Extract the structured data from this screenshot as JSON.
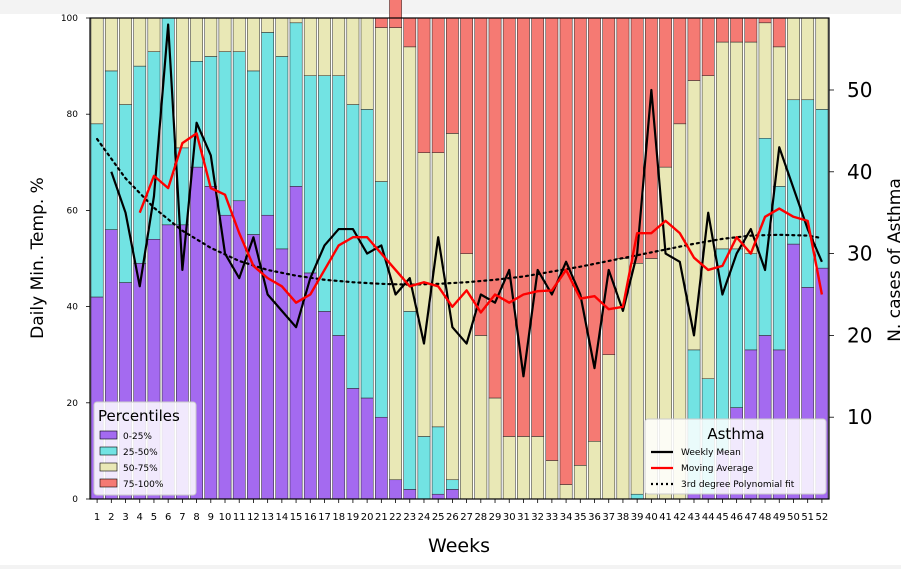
{
  "chart_data": {
    "type": "bar",
    "xlabel": "Weeks",
    "ylabel": "Daily Min. Temp. %",
    "ylabel_right": "N. cases of Asthma",
    "categories": [
      "1",
      "2",
      "3",
      "4",
      "5",
      "6",
      "7",
      "8",
      "9",
      "10",
      "11",
      "12",
      "13",
      "14",
      "15",
      "16",
      "17",
      "18",
      "19",
      "20",
      "21",
      "22",
      "23",
      "24",
      "25",
      "26",
      "27",
      "28",
      "29",
      "30",
      "31",
      "32",
      "33",
      "34",
      "35",
      "36",
      "37",
      "38",
      "39",
      "40",
      "41",
      "42",
      "43",
      "44",
      "45",
      "46",
      "47",
      "48",
      "49",
      "50",
      "51",
      "52"
    ],
    "ylim": [
      0,
      100
    ],
    "yticks": [
      "0",
      "20",
      "40",
      "60",
      "80",
      "100"
    ],
    "ylim_right": [
      0,
      58.8
    ],
    "yticks_right": [
      "10",
      "20",
      "30",
      "40",
      "50"
    ],
    "grid": false,
    "percentile_legend": {
      "title": "Percentiles",
      "placement": "lower-left",
      "entries": [
        "0-25%",
        "25-50%",
        "50-75%",
        "75-100%"
      ]
    },
    "asthma_legend": {
      "title": "Asthma",
      "placement": "lower-right",
      "entries": [
        "Weekly Mean",
        "Moving Average",
        "3rd degree Polynomial fit"
      ]
    },
    "colors": {
      "p0_25": "#a46af0",
      "p25_50": "#72e3e3",
      "p50_75": "#e9e8b6",
      "p75_100": "#f57a73",
      "weekly_mean": "#000000",
      "moving_average": "#ff0000",
      "poly_fit": "#000000"
    },
    "stacked_series": [
      {
        "name": "0-25%",
        "values": [
          42,
          56,
          45,
          49,
          54,
          57,
          57,
          69,
          65,
          59,
          62,
          55,
          59,
          52,
          65,
          47,
          39,
          34,
          23,
          21,
          17,
          4,
          2,
          0,
          1,
          2,
          0,
          0,
          0,
          0,
          0,
          0,
          0,
          0,
          0,
          0,
          0,
          0,
          0,
          0,
          0,
          0,
          1,
          1,
          10,
          19,
          31,
          34,
          31,
          53,
          44,
          48
        ]
      },
      {
        "name": "25-50%",
        "values": [
          36,
          33,
          37,
          41,
          39,
          43,
          16,
          22,
          27,
          34,
          31,
          34,
          38,
          40,
          34,
          41,
          49,
          54,
          59,
          60,
          49,
          0,
          37,
          13,
          14,
          2,
          0,
          0,
          0,
          0,
          0,
          0,
          0,
          0,
          0,
          0,
          0,
          0,
          1,
          0,
          0,
          0,
          30,
          24,
          42,
          33,
          20,
          41,
          34,
          30,
          39,
          33
        ]
      },
      {
        "name": "50-75%",
        "values": [
          22,
          11,
          18,
          10,
          7,
          0,
          27,
          9,
          8,
          7,
          7,
          11,
          3,
          8,
          1,
          12,
          12,
          12,
          18,
          19,
          32,
          94,
          55,
          59,
          57,
          72,
          51,
          34,
          21,
          13,
          13,
          13,
          8,
          3,
          7,
          12,
          30,
          50,
          48,
          50,
          69,
          78,
          56,
          63,
          43,
          43,
          44,
          24,
          29,
          17,
          17,
          19
        ]
      },
      {
        "name": "75-100%",
        "values": [
          0,
          0,
          0,
          0,
          0,
          0,
          0,
          0,
          0,
          0,
          0,
          0,
          0,
          0,
          0,
          0,
          0,
          0,
          0,
          0,
          2,
          6,
          6,
          28,
          28,
          24,
          49,
          66,
          79,
          87,
          87,
          87,
          92,
          97,
          93,
          88,
          70,
          50,
          51,
          50,
          31,
          22,
          13,
          12,
          5,
          5,
          5,
          1,
          6,
          0,
          0,
          0
        ]
      }
    ],
    "weekly_mean_x": [
      2,
      3,
      4,
      5,
      6,
      7,
      8,
      9,
      10,
      11,
      12,
      13,
      14,
      15,
      16,
      17,
      18,
      19,
      20,
      21,
      22,
      23,
      24,
      25,
      26,
      27,
      28,
      29,
      30,
      31,
      32,
      33,
      34,
      35,
      36,
      37,
      38,
      39,
      40,
      41,
      42,
      43,
      44,
      45,
      46,
      47,
      48,
      49,
      50,
      51,
      52
    ],
    "weekly_mean": [
      40,
      35,
      26,
      37,
      58,
      28,
      46,
      42,
      30,
      27,
      32,
      25,
      23,
      21,
      27,
      31,
      33,
      33,
      30,
      31,
      25,
      27,
      19,
      32,
      21,
      19,
      25,
      24,
      28,
      15,
      28,
      25,
      29,
      25,
      16,
      28,
      23,
      30,
      50,
      30,
      29,
      20,
      35,
      25,
      30,
      33,
      28,
      43,
      38,
      33,
      29
    ],
    "moving_average_x": [
      4,
      5,
      6,
      7,
      8,
      9,
      10,
      11,
      12,
      13,
      14,
      15,
      16,
      17,
      18,
      19,
      20,
      21,
      22,
      23,
      24,
      25,
      26,
      27,
      28,
      29,
      30,
      31,
      32,
      33,
      34,
      35,
      36,
      37,
      38,
      39,
      40,
      41,
      42,
      43,
      44,
      45,
      46,
      47,
      48,
      49,
      50,
      51,
      52
    ],
    "moving_average": [
      35,
      39.5,
      38,
      43.5,
      44.7,
      38,
      37.2,
      32.5,
      28.5,
      27,
      26,
      24,
      25,
      28,
      31,
      32,
      32,
      30,
      28,
      26,
      26.5,
      26,
      23.5,
      25.5,
      22.8,
      25,
      24,
      25,
      25.4,
      25.5,
      28,
      24.5,
      24.8,
      23.2,
      23.5,
      32.5,
      32.5,
      34,
      32.5,
      29.5,
      28,
      28.5,
      32,
      30,
      34.5,
      35.5,
      34.5,
      34,
      25
    ],
    "poly_fit_x": [
      1,
      3,
      5,
      7,
      9,
      11,
      13,
      15,
      17,
      19,
      21,
      23,
      25,
      27,
      29,
      31,
      33,
      35,
      37,
      39,
      41,
      43,
      45,
      47,
      49,
      51,
      52
    ],
    "poly_fit": [
      44,
      39.2,
      35.6,
      32.8,
      30.7,
      29.1,
      28,
      27.3,
      26.8,
      26.5,
      26.3,
      26.2,
      26.3,
      26.5,
      26.8,
      27.2,
      27.8,
      28.4,
      29.1,
      29.8,
      30.5,
      31.2,
      31.8,
      32.2,
      32.3,
      32.2,
      31.9
    ]
  }
}
